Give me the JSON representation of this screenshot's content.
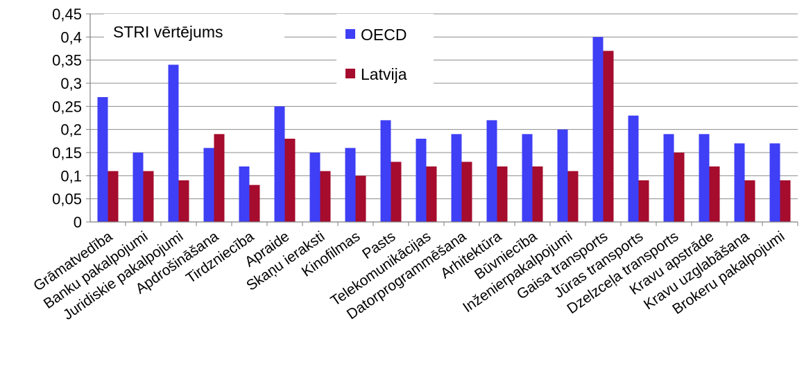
{
  "chart_data": {
    "type": "bar",
    "title": "STRI vērtējums",
    "categories": [
      "Grāmatvedība",
      "Banku pakalpojumi",
      "Juridiskie pakalpojumi",
      "Apdrošināšana",
      "Tirdzniecība",
      "Apraide",
      "Skaņu ieraksti",
      "Kinofilmas",
      "Pasts",
      "Telekomunikācijas",
      "Datorprogrammēšana",
      "Arhitektūra",
      "Būvniecība",
      "Inženierpakalpojumi",
      "Gaisa transports",
      "Jūras transports",
      "Dzelzceļa transports",
      "Kravu apstrāde",
      "Kravu uzglabāšana",
      "Brokeru pakalpojumi"
    ],
    "series": [
      {
        "name": "OECD",
        "color": "#3f3ff6",
        "values": [
          0.27,
          0.15,
          0.34,
          0.16,
          0.12,
          0.25,
          0.15,
          0.16,
          0.22,
          0.18,
          0.19,
          0.22,
          0.19,
          0.2,
          0.4,
          0.23,
          0.19,
          0.19,
          0.17,
          0.17
        ]
      },
      {
        "name": "Latvija",
        "color": "#a50c2e",
        "values": [
          0.11,
          0.11,
          0.09,
          0.19,
          0.08,
          0.18,
          0.11,
          0.1,
          0.13,
          0.12,
          0.13,
          0.12,
          0.12,
          0.11,
          0.37,
          0.09,
          0.15,
          0.12,
          0.09,
          0.09
        ]
      }
    ],
    "ylim": [
      0,
      0.45
    ],
    "yticks": [
      "0",
      "0,05",
      "0,1",
      "0,15",
      "0,2",
      "0,25",
      "0,3",
      "0,35",
      "0,4",
      "0,45"
    ],
    "grid": true,
    "legend": "top-center"
  }
}
